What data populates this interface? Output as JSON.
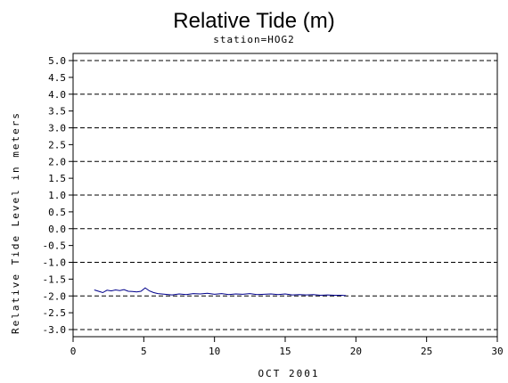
{
  "chart_data": {
    "type": "line",
    "title": "Relative Tide (m)",
    "subtitle": "station=HOG2",
    "xlabel": "OCT 2001",
    "ylabel": "Relative Tide Level in meters",
    "xlim": [
      0,
      30
    ],
    "ylim": [
      -3.0,
      5.0
    ],
    "x_ticks": [
      "0",
      "5",
      "10",
      "15",
      "20",
      "25",
      "30"
    ],
    "y_ticks": [
      "5.0",
      "4.5",
      "4.0",
      "3.5",
      "3.0",
      "2.5",
      "2.0",
      "1.5",
      "1.0",
      "0.5",
      "0.0",
      "-0.5",
      "-1.0",
      "-1.5",
      "-2.0",
      "-2.5",
      "-3.0"
    ],
    "grid": "dashed horizontal lines at each whole meter",
    "series": [
      {
        "color": "#00008b",
        "x": [
          1.5,
          1.8,
          2.1,
          2.4,
          2.7,
          3.0,
          3.3,
          3.6,
          3.9,
          4.2,
          4.5,
          4.8,
          5.1,
          5.4,
          5.7,
          6.0,
          6.5,
          7.0,
          7.5,
          8.0,
          8.5,
          9.0,
          9.5,
          10.0,
          10.5,
          11.0,
          11.5,
          12.0,
          12.5,
          13.0,
          13.5,
          14.0,
          14.5,
          15.0,
          15.5,
          16.0,
          16.5,
          17.0,
          17.5,
          18.0,
          18.5,
          19.0,
          19.3
        ],
        "y": [
          -1.82,
          -1.86,
          -1.9,
          -1.83,
          -1.85,
          -1.82,
          -1.84,
          -1.81,
          -1.86,
          -1.87,
          -1.88,
          -1.86,
          -1.76,
          -1.85,
          -1.9,
          -1.93,
          -1.95,
          -1.97,
          -1.94,
          -1.96,
          -1.93,
          -1.94,
          -1.92,
          -1.95,
          -1.93,
          -1.96,
          -1.94,
          -1.95,
          -1.93,
          -1.96,
          -1.95,
          -1.94,
          -1.96,
          -1.94,
          -1.97,
          -1.96,
          -1.97,
          -1.96,
          -1.98,
          -1.97,
          -1.98,
          -1.98,
          -1.99
        ]
      }
    ]
  }
}
